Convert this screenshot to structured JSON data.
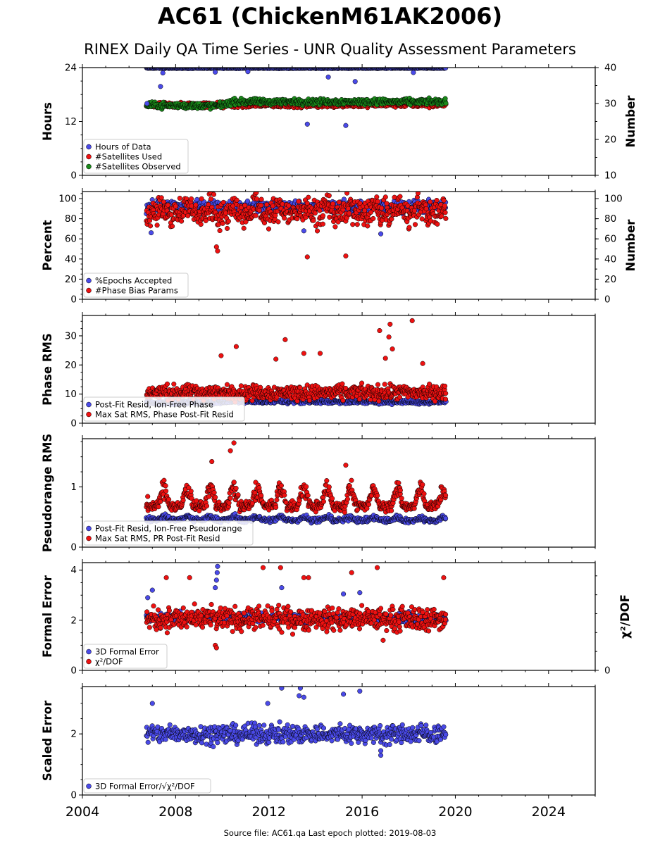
{
  "page": {
    "title": "AC61 (ChickenM61AK2006)",
    "subtitle": "RINEX Daily QA Time Series - UNR Quality Assessment Parameters",
    "footer": "Source file: AC61.qa Last epoch plotted: 2019-08-03"
  },
  "colors": {
    "blue": "#4a4ae8",
    "red": "#ee1111",
    "green": "#1a8a1a"
  },
  "chart_data": {
    "type": "scatter",
    "x_range": [
      2004,
      2026
    ],
    "x_ticks": [
      2004,
      2008,
      2012,
      2016,
      2020,
      2024
    ],
    "x_tick_labels": [
      "2004",
      "2008",
      "2012",
      "2016",
      "2020",
      "2024"
    ],
    "data_span": [
      2006.75,
      2019.59
    ],
    "panels": [
      {
        "id": "hours",
        "ylabel": "Hours",
        "ylim": [
          0,
          24
        ],
        "yticks": [
          0,
          12,
          24
        ],
        "ytick_labels": [
          "0",
          "12",
          "24"
        ],
        "y2label": "Number",
        "y2lim": [
          10,
          40
        ],
        "y2ticks": [
          10,
          20,
          30,
          40
        ],
        "y2tick_labels": [
          "10",
          "20",
          "30",
          "40"
        ],
        "legend": [
          "Hours of Data",
          "#Satellites Used",
          "#Satellites Observed"
        ],
        "series": [
          {
            "name": "Hours of Data",
            "color": "blue",
            "axis": "left",
            "typical": [
              [
                2006.8,
                23.9
              ],
              [
                2019.5,
                23.9
              ]
            ],
            "spread": 0.1
          },
          {
            "name": "#Satellites Used",
            "color": "red",
            "axis": "right",
            "typical": [
              [
                2006.8,
                29.5
              ],
              [
                2019.5,
                29.8
              ]
            ],
            "spread": 0.8
          },
          {
            "name": "#Satellites Observed",
            "color": "green",
            "axis": "right",
            "typical": [
              [
                2006.8,
                29.5
              ],
              [
                2009.8,
                29.3
              ],
              [
                2010.5,
                30.5
              ],
              [
                2019.5,
                30.5
              ]
            ],
            "spread": 0.8
          }
        ],
        "outliers": [
          {
            "series": "Hours of Data",
            "x": 2006.77,
            "y": 16.0
          },
          {
            "series": "Hours of Data",
            "x": 2007.35,
            "y": 19.8
          },
          {
            "series": "Hours of Data",
            "x": 2007.45,
            "y": 22.8
          },
          {
            "series": "Hours of Data",
            "x": 2009.7,
            "y": 23.0
          },
          {
            "series": "Hours of Data",
            "x": 2011.1,
            "y": 23.1
          },
          {
            "series": "Hours of Data",
            "x": 2013.65,
            "y": 11.4
          },
          {
            "series": "Hours of Data",
            "x": 2014.55,
            "y": 21.9
          },
          {
            "series": "Hours of Data",
            "x": 2015.3,
            "y": 11.1
          },
          {
            "series": "Hours of Data",
            "x": 2015.7,
            "y": 20.9
          },
          {
            "series": "Hours of Data",
            "x": 2018.2,
            "y": 22.9
          }
        ]
      },
      {
        "id": "percent",
        "ylabel": "Percent",
        "ylim": [
          0,
          107
        ],
        "yticks": [
          0,
          20,
          40,
          60,
          80,
          100
        ],
        "ytick_labels": [
          "0",
          "20",
          "40",
          "60",
          "80",
          "100"
        ],
        "y2label": "Number",
        "y2lim": [
          0,
          107
        ],
        "y2ticks": [
          0,
          20,
          40,
          60,
          80,
          100
        ],
        "y2tick_labels": [
          "0",
          "20",
          "40",
          "60",
          "80",
          "100"
        ],
        "legend": [
          "%Epochs Accepted",
          "#Phase Bias Params"
        ],
        "series": [
          {
            "name": "%Epochs Accepted",
            "color": "blue",
            "axis": "left",
            "typical": [
              [
                2006.8,
                92
              ],
              [
                2019.5,
                92
              ]
            ],
            "spread": 6
          },
          {
            "name": "#Phase Bias Params",
            "color": "red",
            "axis": "right",
            "typical": [
              [
                2006.8,
                85
              ],
              [
                2019.5,
                85
              ]
            ],
            "spread": 13,
            "seasonal": 8
          }
        ],
        "outliers": [
          {
            "series": "%Epochs Accepted",
            "x": 2006.95,
            "y": 66
          },
          {
            "series": "%Epochs Accepted",
            "x": 2013.5,
            "y": 68
          },
          {
            "series": "%Epochs Accepted",
            "x": 2016.8,
            "y": 65
          },
          {
            "series": "#Phase Bias Params",
            "x": 2013.65,
            "y": 42
          },
          {
            "series": "#Phase Bias Params",
            "x": 2015.3,
            "y": 43
          },
          {
            "series": "#Phase Bias Params",
            "x": 2009.8,
            "y": 48
          },
          {
            "series": "#Phase Bias Params",
            "x": 2009.75,
            "y": 52
          }
        ]
      },
      {
        "id": "phase",
        "ylabel": "Phase RMS",
        "ylim": [
          0,
          37
        ],
        "yticks": [
          0,
          10,
          20,
          30
        ],
        "ytick_labels": [
          "0",
          "10",
          "20",
          "30"
        ],
        "y2label": "",
        "y2lim": null,
        "y2ticks": [],
        "y2tick_labels": [],
        "legend": [
          "Post-Fit Resid, Ion-Free Phase",
          "Max Sat RMS, Phase Post-Fit Resid"
        ],
        "series": [
          {
            "name": "Post-Fit Resid, Ion-Free Phase",
            "color": "blue",
            "axis": "left",
            "typical": [
              [
                2006.8,
                7.0
              ],
              [
                2010.5,
                7.5
              ],
              [
                2019.5,
                7.3
              ]
            ],
            "spread": 0.7
          },
          {
            "name": "Max Sat RMS, Phase Post-Fit Resid",
            "color": "red",
            "axis": "left",
            "typical": [
              [
                2006.8,
                10.5
              ],
              [
                2019.5,
                10.5
              ]
            ],
            "spread": 2.5
          }
        ],
        "outliers": [
          {
            "series": "Max Sat RMS, Phase Post-Fit Resid",
            "x": 2009.95,
            "y": 23.2
          },
          {
            "series": "Max Sat RMS, Phase Post-Fit Resid",
            "x": 2010.6,
            "y": 26.3
          },
          {
            "series": "Max Sat RMS, Phase Post-Fit Resid",
            "x": 2012.7,
            "y": 28.7
          },
          {
            "series": "Max Sat RMS, Phase Post-Fit Resid",
            "x": 2013.5,
            "y": 24.0
          },
          {
            "series": "Max Sat RMS, Phase Post-Fit Resid",
            "x": 2014.2,
            "y": 24.0
          },
          {
            "series": "Max Sat RMS, Phase Post-Fit Resid",
            "x": 2016.75,
            "y": 31.8
          },
          {
            "series": "Max Sat RMS, Phase Post-Fit Resid",
            "x": 2017.15,
            "y": 29.6
          },
          {
            "series": "Max Sat RMS, Phase Post-Fit Resid",
            "x": 2017.2,
            "y": 34.0
          },
          {
            "series": "Max Sat RMS, Phase Post-Fit Resid",
            "x": 2018.15,
            "y": 35.2
          },
          {
            "series": "Max Sat RMS, Phase Post-Fit Resid",
            "x": 2017.3,
            "y": 25.5
          },
          {
            "series": "Max Sat RMS, Phase Post-Fit Resid",
            "x": 2017.0,
            "y": 22.3
          },
          {
            "series": "Max Sat RMS, Phase Post-Fit Resid",
            "x": 2012.3,
            "y": 22.0
          },
          {
            "series": "Max Sat RMS, Phase Post-Fit Resid",
            "x": 2018.6,
            "y": 20.5
          }
        ]
      },
      {
        "id": "pseudorange",
        "ylabel": "Pseudorange RMS",
        "ylim": [
          0,
          1.8
        ],
        "yticks": [
          0,
          1
        ],
        "ytick_labels": [
          "0",
          "1"
        ],
        "y2label": "",
        "y2lim": null,
        "y2ticks": [],
        "y2tick_labels": [],
        "legend": [
          "Post-Fit Resid, Ion-Free Pseudorange",
          "Max Sat RMS, PR Post-Fit Resid"
        ],
        "series": [
          {
            "name": "Post-Fit Resid, Ion-Free Pseudorange",
            "color": "blue",
            "axis": "left",
            "typical": [
              [
                2006.8,
                0.46
              ],
              [
                2019.5,
                0.44
              ]
            ],
            "spread": 0.04,
            "seasonal": 0.05
          },
          {
            "name": "Max Sat RMS, PR Post-Fit Resid",
            "color": "red",
            "axis": "left",
            "typical": [
              [
                2006.8,
                0.68
              ],
              [
                2019.5,
                0.68
              ]
            ],
            "spread": 0.08,
            "seasonal": 0.28
          }
        ],
        "outliers": [
          {
            "series": "Max Sat RMS, PR Post-Fit Resid",
            "x": 2010.5,
            "y": 1.73
          },
          {
            "series": "Max Sat RMS, PR Post-Fit Resid",
            "x": 2010.35,
            "y": 1.6
          },
          {
            "series": "Max Sat RMS, PR Post-Fit Resid",
            "x": 2009.55,
            "y": 1.42
          },
          {
            "series": "Max Sat RMS, PR Post-Fit Resid",
            "x": 2015.3,
            "y": 1.36
          },
          {
            "series": "Max Sat RMS, PR Post-Fit Resid",
            "x": 2006.8,
            "y": 0.84
          }
        ]
      },
      {
        "id": "formal",
        "ylabel": "Formal Error",
        "ylim": [
          0,
          4.3
        ],
        "yticks": [
          0,
          2,
          4
        ],
        "ytick_labels": [
          "0",
          "2",
          "4"
        ],
        "y2label": "χ²/DOF",
        "y2lim": [
          0,
          4.3
        ],
        "y2ticks": [
          0
        ],
        "y2tick_labels": [
          "0"
        ],
        "legend": [
          "3D Formal Error",
          "χ²/DOF"
        ],
        "series": [
          {
            "name": "3D Formal Error",
            "color": "blue",
            "axis": "left",
            "typical": [
              [
                2006.8,
                2.1
              ],
              [
                2019.5,
                2.1
              ]
            ],
            "spread": 0.18
          },
          {
            "name": "χ²/DOF",
            "color": "red",
            "axis": "right",
            "typical": [
              [
                2006.8,
                2.05
              ],
              [
                2019.5,
                2.05
              ]
            ],
            "spread": 0.45
          }
        ],
        "outliers": [
          {
            "series": "3D Formal Error",
            "x": 2006.8,
            "y": 2.9
          },
          {
            "series": "3D Formal Error",
            "x": 2007.0,
            "y": 3.2
          },
          {
            "series": "3D Formal Error",
            "x": 2009.8,
            "y": 4.15
          },
          {
            "series": "3D Formal Error",
            "x": 2009.78,
            "y": 3.9
          },
          {
            "series": "3D Formal Error",
            "x": 2009.75,
            "y": 3.6
          },
          {
            "series": "3D Formal Error",
            "x": 2009.7,
            "y": 3.3
          },
          {
            "series": "3D Formal Error",
            "x": 2012.55,
            "y": 3.3
          },
          {
            "series": "3D Formal Error",
            "x": 2015.2,
            "y": 3.05
          },
          {
            "series": "3D Formal Error",
            "x": 2015.9,
            "y": 3.1
          },
          {
            "series": "χ²/DOF",
            "x": 2011.75,
            "y": 4.1
          },
          {
            "series": "χ²/DOF",
            "x": 2012.5,
            "y": 4.1
          },
          {
            "series": "χ²/DOF",
            "x": 2016.65,
            "y": 4.1
          },
          {
            "series": "χ²/DOF",
            "x": 2015.55,
            "y": 3.9
          },
          {
            "series": "χ²/DOF",
            "x": 2013.5,
            "y": 3.7
          },
          {
            "series": "χ²/DOF",
            "x": 2013.7,
            "y": 3.7
          },
          {
            "series": "χ²/DOF",
            "x": 2019.5,
            "y": 3.7
          },
          {
            "series": "χ²/DOF",
            "x": 2007.6,
            "y": 3.7
          },
          {
            "series": "χ²/DOF",
            "x": 2008.6,
            "y": 3.7
          },
          {
            "series": "χ²/DOF",
            "x": 2009.7,
            "y": 1.0
          },
          {
            "series": "χ²/DOF",
            "x": 2009.75,
            "y": 0.9
          },
          {
            "series": "χ²/DOF",
            "x": 2016.9,
            "y": 1.2
          }
        ]
      },
      {
        "id": "scaled",
        "ylabel": "Scaled Error",
        "ylim": [
          0,
          3.55
        ],
        "yticks": [
          0,
          2
        ],
        "ytick_labels": [
          "0",
          "2"
        ],
        "y2label": "",
        "y2lim": null,
        "y2ticks": [],
        "y2tick_labels": [],
        "legend": [
          "3D Formal Error/√χ²/DOF"
        ],
        "series": [
          {
            "name": "3D Formal Error/√χ²/DOF",
            "color": "blue",
            "axis": "left",
            "typical": [
              [
                2006.8,
                2.0
              ],
              [
                2019.5,
                2.0
              ]
            ],
            "spread": 0.3
          }
        ],
        "outliers": [
          {
            "series": "3D Formal Error/√χ²/DOF",
            "x": 2007.0,
            "y": 3.0
          },
          {
            "series": "3D Formal Error/√χ²/DOF",
            "x": 2012.55,
            "y": 3.5
          },
          {
            "series": "3D Formal Error/√χ²/DOF",
            "x": 2013.35,
            "y": 3.5
          },
          {
            "series": "3D Formal Error/√χ²/DOF",
            "x": 2013.3,
            "y": 3.25
          },
          {
            "series": "3D Formal Error/√χ²/DOF",
            "x": 2013.5,
            "y": 3.2
          },
          {
            "series": "3D Formal Error/√χ²/DOF",
            "x": 2015.2,
            "y": 3.3
          },
          {
            "series": "3D Formal Error/√χ²/DOF",
            "x": 2015.9,
            "y": 3.4
          },
          {
            "series": "3D Formal Error/√χ²/DOF",
            "x": 2011.95,
            "y": 3.0
          },
          {
            "series": "3D Formal Error/√χ²/DOF",
            "x": 2016.8,
            "y": 1.3
          },
          {
            "series": "3D Formal Error/√χ²/DOF",
            "x": 2016.8,
            "y": 1.45
          }
        ]
      }
    ]
  }
}
